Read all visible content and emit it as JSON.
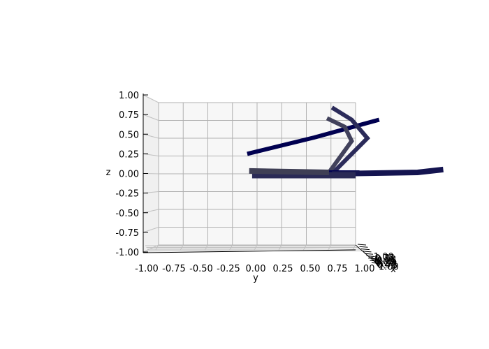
{
  "chart_data": {
    "type": "line3d",
    "title": "",
    "axes": {
      "y": {
        "label": "y",
        "ticks": [
          "-1.00",
          "-0.75",
          "-0.50",
          "-0.25",
          "0.00",
          "0.25",
          "0.50",
          "0.75",
          "1.00"
        ],
        "lim": [
          -1,
          1
        ]
      },
      "z": {
        "label": "z",
        "ticks": [
          "-1.00",
          "-0.75",
          "-0.50",
          "-0.25",
          "0.00",
          "0.25",
          "0.50",
          "0.75",
          "1.00"
        ],
        "lim": [
          -1,
          1
        ]
      },
      "x": {
        "label": "x",
        "ticks": [
          "-1.00",
          "-0.75",
          "-0.50",
          "-0.25",
          "0.00",
          "0.25",
          "0.50",
          "0.75",
          "1.00"
        ],
        "lim": [
          -1,
          1
        ]
      }
    },
    "grid": true,
    "pane_color": "#f7f7f7",
    "series": [
      {
        "color": "#000050",
        "width": 6,
        "points": [
          [
            -0.1,
            0.28
          ],
          [
            0.58,
            0.51
          ],
          [
            1.24,
            0.76
          ]
        ]
      },
      {
        "color": "#2b2b5a",
        "width": 6,
        "points": [
          [
            0.76,
            0.0
          ],
          [
            1.12,
            0.5
          ],
          [
            0.96,
            0.76
          ],
          [
            0.76,
            0.93
          ]
        ]
      },
      {
        "color": "#41415b",
        "width": 6,
        "points": [
          [
            0.73,
            0.02
          ],
          [
            0.96,
            0.46
          ],
          [
            0.89,
            0.66
          ],
          [
            0.71,
            0.78
          ]
        ]
      },
      {
        "color": "#000050",
        "width": 6,
        "points": [
          [
            0.73,
            0.02
          ],
          [
            1.04,
            0.02
          ]
        ]
      },
      {
        "color": "#141450",
        "width": 8,
        "points": [
          [
            0.76,
            0.0
          ],
          [
            1.63,
            0.02
          ],
          [
            1.89,
            0.06
          ]
        ]
      },
      {
        "color": "#2a2a56",
        "width": 9,
        "points": [
          [
            -0.05,
            -0.02
          ],
          [
            1.0,
            -0.02
          ]
        ]
      },
      {
        "color": "#3f3f55",
        "width": 8,
        "points": [
          [
            -0.08,
            0.04
          ],
          [
            0.73,
            0.02
          ]
        ]
      }
    ]
  }
}
